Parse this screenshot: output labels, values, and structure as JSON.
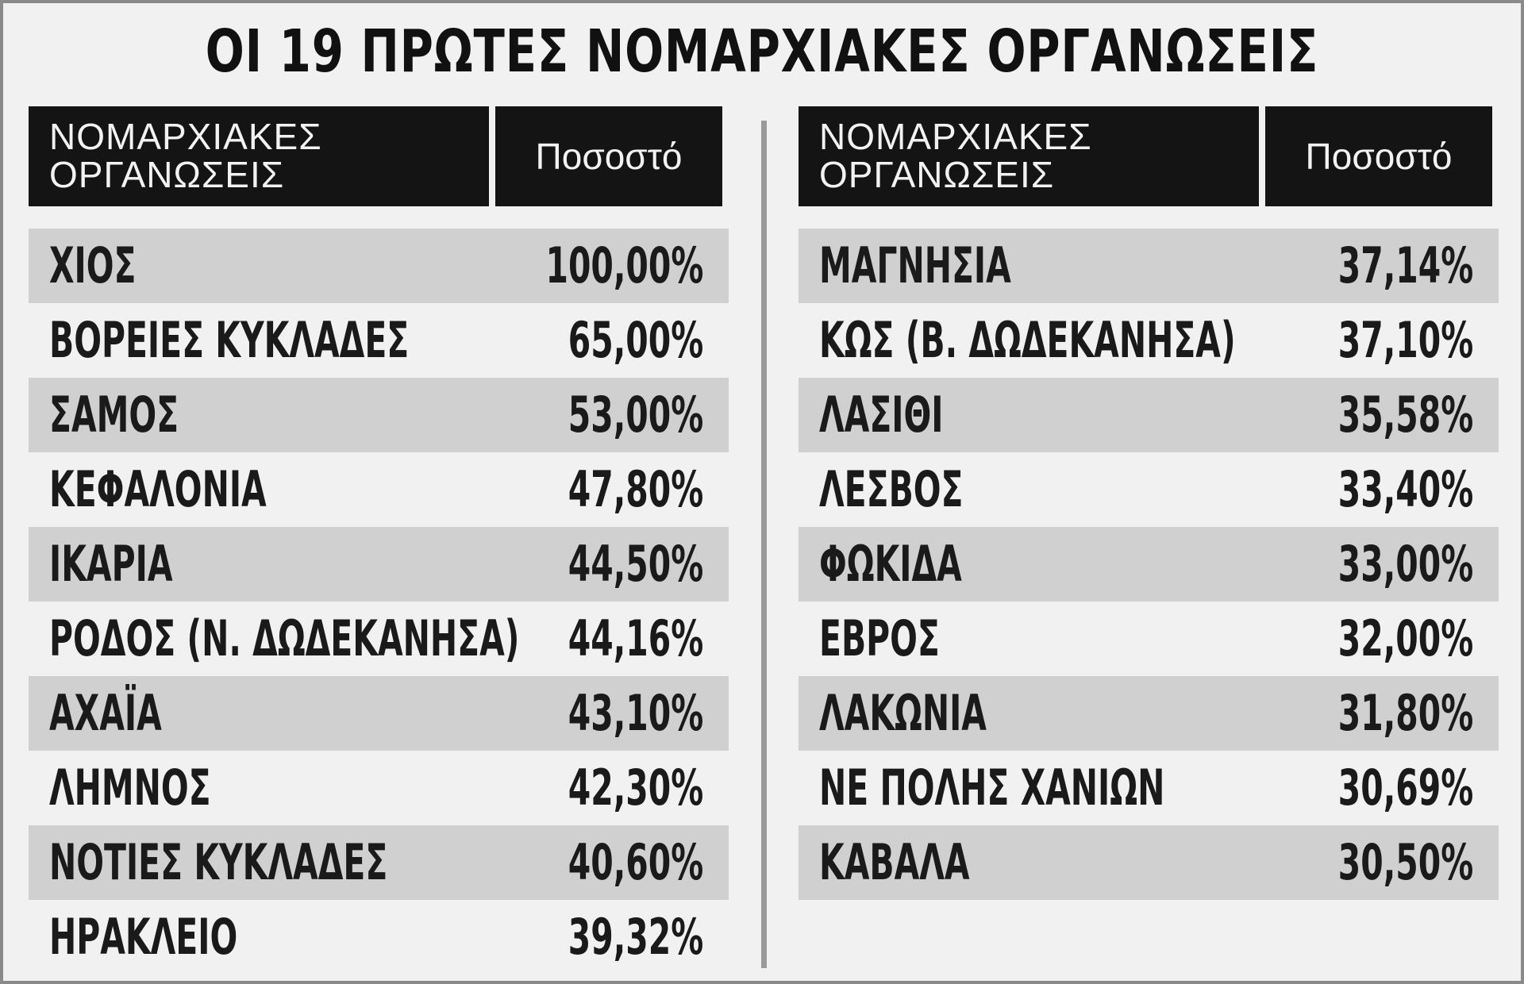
{
  "chart_data": {
    "type": "table",
    "title": "ΟΙ 19 ΠΡΩΤΕΣ ΝΟΜΑΡΧΙΑΚΕΣ ΟΡΓΑΝΩΣΕΙΣ",
    "columns": [
      "ΝΟΜΑΡΧΙΑΚΕΣ ΟΡΓΑΝΩΣΕΙΣ",
      "Ποσοστό"
    ],
    "header": {
      "name_line1": "ΝΟΜΑΡΧΙΑΚΕΣ",
      "name_line2": "ΟΡΓΑΝΩΣΕΙΣ",
      "pct": "Ποσοστό"
    },
    "left_rows": [
      {
        "name": "ΧΙΟΣ",
        "pct": "100,00%",
        "value": 100.0
      },
      {
        "name": "ΒΟΡΕΙΕΣ ΚΥΚΛΑΔΕΣ",
        "pct": "65,00%",
        "value": 65.0
      },
      {
        "name": "ΣΑΜΟΣ",
        "pct": "53,00%",
        "value": 53.0
      },
      {
        "name": "ΚΕΦΑΛΟΝΙΑ",
        "pct": "47,80%",
        "value": 47.8
      },
      {
        "name": "ΙΚΑΡΙΑ",
        "pct": "44,50%",
        "value": 44.5
      },
      {
        "name": "ΡΟΔΟΣ (Ν. ΔΩΔΕΚΑΝΗΣΑ)",
        "pct": "44,16%",
        "value": 44.16
      },
      {
        "name": "ΑΧΑΪΑ",
        "pct": "43,10%",
        "value": 43.1
      },
      {
        "name": "ΛΗΜΝΟΣ",
        "pct": "42,30%",
        "value": 42.3
      },
      {
        "name": "ΝΟΤΙΕΣ ΚΥΚΛΑΔΕΣ",
        "pct": "40,60%",
        "value": 40.6
      },
      {
        "name": "ΗΡΑΚΛΕΙΟ",
        "pct": "39,32%",
        "value": 39.32
      }
    ],
    "right_rows": [
      {
        "name": "ΜΑΓΝΗΣΙΑ",
        "pct": "37,14%",
        "value": 37.14
      },
      {
        "name": "ΚΩΣ (Β. ΔΩΔΕΚΑΝΗΣΑ)",
        "pct": "37,10%",
        "value": 37.1
      },
      {
        "name": "ΛΑΣΙΘΙ",
        "pct": "35,58%",
        "value": 35.58
      },
      {
        "name": "ΛΕΣΒΟΣ",
        "pct": "33,40%",
        "value": 33.4
      },
      {
        "name": "ΦΩΚΙΔΑ",
        "pct": "33,00%",
        "value": 33.0
      },
      {
        "name": "ΕΒΡΟΣ",
        "pct": "32,00%",
        "value": 32.0
      },
      {
        "name": "ΛΑΚΩΝΙΑ",
        "pct": "31,80%",
        "value": 31.8
      },
      {
        "name": "ΝΕ ΠΟΛΗΣ ΧΑΝΙΩΝ",
        "pct": "30,69%",
        "value": 30.69
      },
      {
        "name": "ΚΑΒΑΛΑ",
        "pct": "30,50%",
        "value": 30.5
      }
    ]
  }
}
